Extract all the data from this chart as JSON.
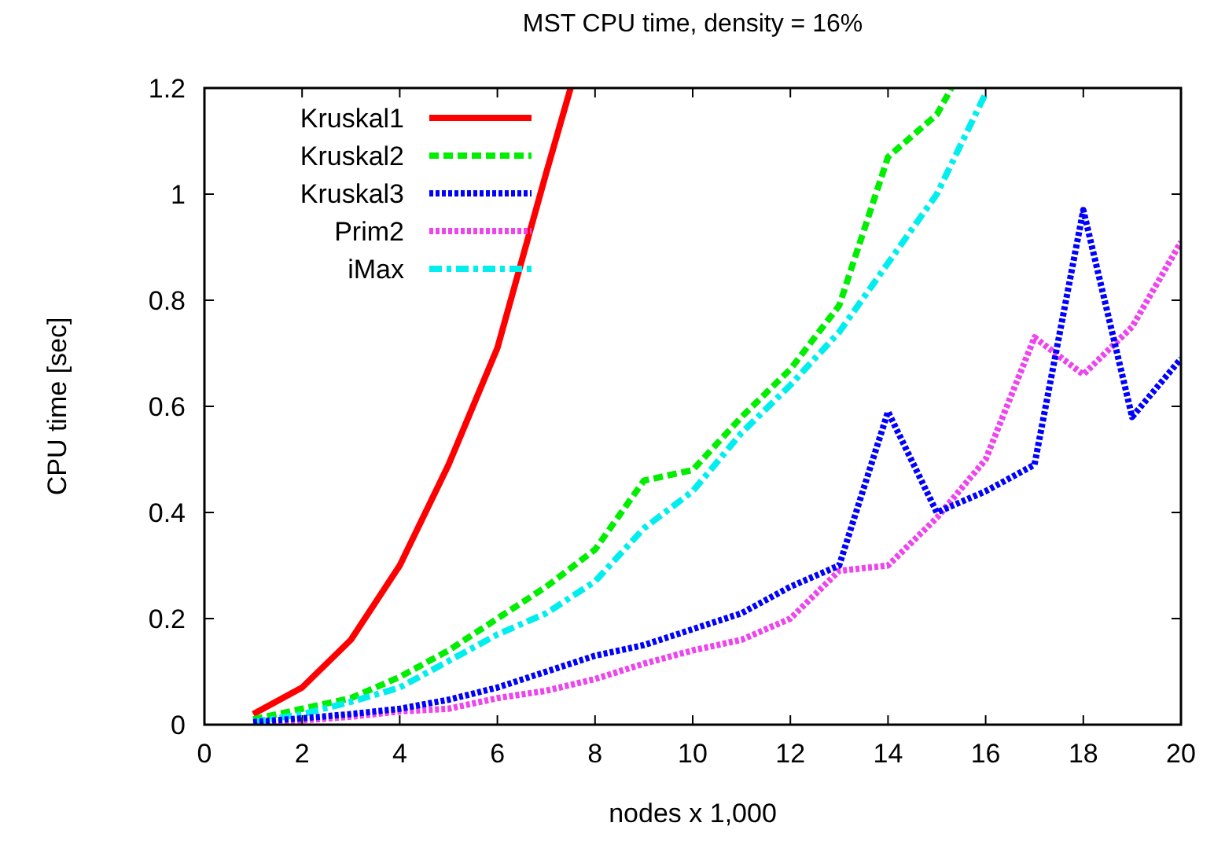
{
  "chart_data": {
    "type": "line",
    "title": "MST CPU time, density = 16%",
    "xlabel": "nodes x 1,000",
    "ylabel": "CPU time [sec]",
    "xlim": [
      0,
      20
    ],
    "xticks": [
      0,
      2,
      4,
      6,
      8,
      10,
      12,
      14,
      16,
      18,
      20
    ],
    "ylim": [
      0,
      1.2
    ],
    "yticks": [
      0,
      0.2,
      0.4,
      0.6,
      0.8,
      1,
      1.2
    ],
    "grid": false,
    "legend": "top left",
    "marker": "none",
    "series": [
      {
        "name": "Kruskal1",
        "color": "#ff0000",
        "line_style": "solid",
        "x": [
          1,
          2,
          3,
          4,
          5,
          6,
          7,
          7.5
        ],
        "values": [
          0.02,
          0.07,
          0.16,
          0.3,
          0.49,
          0.71,
          1.04,
          1.2
        ]
      },
      {
        "name": "Kruskal2",
        "color": "#00ee00",
        "line_style": "dashed",
        "x": [
          1,
          2,
          3,
          4,
          5,
          6,
          7,
          8,
          9,
          10,
          11,
          12,
          13,
          14,
          15,
          15.3
        ],
        "values": [
          0.01,
          0.03,
          0.05,
          0.09,
          0.14,
          0.2,
          0.26,
          0.33,
          0.46,
          0.48,
          0.58,
          0.67,
          0.79,
          1.07,
          1.15,
          1.2
        ]
      },
      {
        "name": "Kruskal3",
        "color": "#0000ff",
        "line_style": "dotted",
        "x": [
          1,
          2,
          3,
          4,
          5,
          6,
          7,
          8,
          9,
          10,
          11,
          12,
          13,
          14,
          15,
          16,
          17,
          18,
          19,
          20
        ],
        "values": [
          0.005,
          0.012,
          0.02,
          0.03,
          0.047,
          0.07,
          0.1,
          0.13,
          0.15,
          0.18,
          0.21,
          0.26,
          0.3,
          0.59,
          0.4,
          0.44,
          0.49,
          0.97,
          0.58,
          0.69
        ]
      },
      {
        "name": "Prim2",
        "color": "#ee44ee",
        "line_style": "dotted",
        "x": [
          1,
          2,
          3,
          4,
          5,
          6,
          7,
          8,
          9,
          10,
          11,
          12,
          13,
          14,
          15,
          16,
          17,
          18,
          19,
          20
        ],
        "values": [
          0,
          0.008,
          0.015,
          0.025,
          0.03,
          0.05,
          0.064,
          0.086,
          0.115,
          0.14,
          0.16,
          0.2,
          0.29,
          0.3,
          0.39,
          0.5,
          0.73,
          0.66,
          0.75,
          0.91
        ]
      },
      {
        "name": "iMax",
        "color": "#00eeee",
        "line_style": "dashdot",
        "x": [
          1,
          2,
          3,
          4,
          5,
          6,
          7,
          8,
          9,
          10,
          11,
          12,
          13,
          14,
          15,
          16
        ],
        "values": [
          0.005,
          0.02,
          0.043,
          0.07,
          0.12,
          0.17,
          0.21,
          0.27,
          0.37,
          0.44,
          0.55,
          0.64,
          0.74,
          0.87,
          1.0,
          1.19
        ]
      }
    ]
  }
}
